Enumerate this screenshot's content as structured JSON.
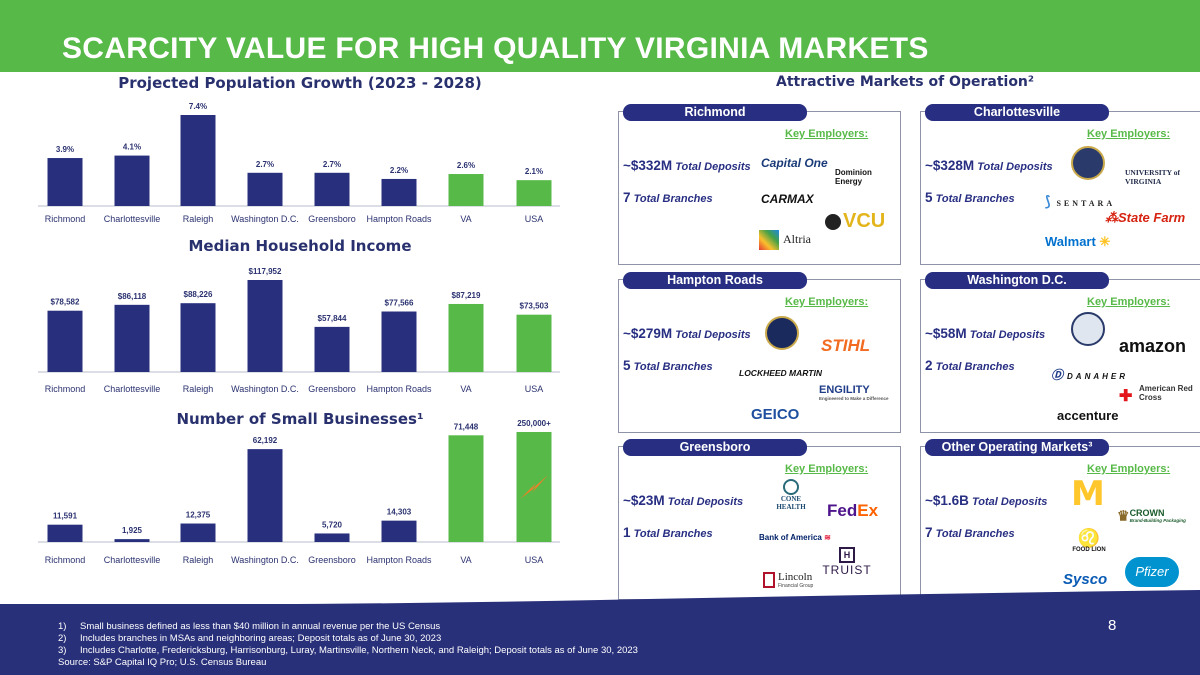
{
  "title": "SCARCITY VALUE FOR HIGH QUALITY VIRGINIA MARKETS",
  "chart_data": [
    {
      "type": "bar",
      "title": "Projected Population Growth (2023 - 2028)",
      "categories": [
        "Richmond",
        "Charlottesville",
        "Raleigh",
        "Washington D.C.",
        "Greensboro",
        "Hampton Roads",
        "VA",
        "USA"
      ],
      "values": [
        3.9,
        4.1,
        7.4,
        2.7,
        2.7,
        2.2,
        2.6,
        2.1
      ],
      "value_labels": [
        "3.9%",
        "4.1%",
        "7.4%",
        "2.7%",
        "2.7%",
        "2.2%",
        "2.6%",
        "2.1%"
      ],
      "bar_colors": [
        "#28307e",
        "#28307e",
        "#28307e",
        "#28307e",
        "#28307e",
        "#28307e",
        "#57b947",
        "#57b947"
      ],
      "ylim": [
        0,
        7.4
      ]
    },
    {
      "type": "bar",
      "title": "Median Household Income",
      "categories": [
        "Richmond",
        "Charlottesville",
        "Raleigh",
        "Washington D.C.",
        "Greensboro",
        "Hampton Roads",
        "VA",
        "USA"
      ],
      "values": [
        78582,
        86118,
        88226,
        117952,
        57844,
        77566,
        87219,
        73503
      ],
      "value_labels": [
        "$78,582",
        "$86,118",
        "$88,226",
        "$117,952",
        "$57,844",
        "$77,566",
        "$87,219",
        "$73,503"
      ],
      "bar_colors": [
        "#28307e",
        "#28307e",
        "#28307e",
        "#28307e",
        "#28307e",
        "#28307e",
        "#57b947",
        "#57b947"
      ],
      "ylim": [
        0,
        117952
      ]
    },
    {
      "type": "bar",
      "title": "Number of Small Businesses¹",
      "categories": [
        "Richmond",
        "Charlottesville",
        "Raleigh",
        "Washington D.C.",
        "Greensboro",
        "Hampton Roads",
        "VA",
        "USA"
      ],
      "values": [
        11591,
        1925,
        12375,
        62192,
        5720,
        14303,
        71448,
        250000
      ],
      "value_labels": [
        "11,591",
        "1,925",
        "12,375",
        "62,192",
        "5,720",
        "14,303",
        "71,448",
        "250,000+"
      ],
      "bar_colors": [
        "#28307e",
        "#28307e",
        "#28307e",
        "#28307e",
        "#28307e",
        "#28307e",
        "#57b947",
        "#57b947"
      ],
      "axis_break": "USA",
      "break_color": "#e8832a"
    }
  ],
  "markets_title": "Attractive Markets of Operation²",
  "key_label": "Key Employers:",
  "deposits_suffix": "Total Deposits",
  "branches_suffix": "Total Branches",
  "markets": [
    {
      "name": "Richmond",
      "deposits": "~$332M",
      "branches": "7",
      "employers": [
        "Capital One",
        "Dominion Energy",
        "CarMax",
        "VCU",
        "Altria"
      ]
    },
    {
      "name": "Charlottesville",
      "deposits": "~$328M",
      "branches": "5",
      "employers": [
        "University of Virginia",
        "Sentara",
        "State Farm",
        "Walmart"
      ]
    },
    {
      "name": "Hampton Roads",
      "deposits": "~$279M",
      "branches": "5",
      "employers": [
        "STIHL",
        "Lockheed Martin",
        "Engility",
        "GEICO"
      ]
    },
    {
      "name": "Washington D.C.",
      "deposits": "~$58M",
      "branches": "2",
      "employers": [
        "amazon",
        "Danaher",
        "American Red Cross",
        "accenture"
      ]
    },
    {
      "name": "Greensboro",
      "deposits": "~$23M",
      "branches": "1",
      "employers": [
        "Cone Health",
        "FedEx",
        "Bank of America",
        "Truist",
        "Lincoln Financial Group"
      ]
    },
    {
      "name": "Other Operating Markets³",
      "deposits": "~$1.6B",
      "branches": "7",
      "employers": [
        "McDonald's",
        "Crown",
        "Food Lion",
        "Sysco",
        "Pfizer"
      ]
    }
  ],
  "logos": {
    "capital_one": "Capital One",
    "dominion": "Dominion Energy",
    "carmax": "CARMAX",
    "vcu": "VCU",
    "altria": "Altria",
    "uva": "UNIVERSITY of VIRGINIA",
    "sentara": "SENTARA",
    "statefarm": "State Farm",
    "walmart": "Walmart",
    "stihl": "STIHL",
    "lockheed": "LOCKHEED MARTIN",
    "engility": "ENGILITY",
    "engility_tag": "Engineered to Make a Difference",
    "geico": "GEICO",
    "amazon": "amazon",
    "danaher": "DANAHER",
    "redcross": "American Red Cross",
    "accenture": "accenture",
    "cone": "CONE HEALTH",
    "fedex_fed": "Fed",
    "fedex_ex": "Ex",
    "bofa": "Bank of America",
    "truist": "TRUIST",
    "lincoln": "Lincoln",
    "lincoln_tag": "Financial Group",
    "crown": "CROWN",
    "crown_tag": "Brand-Building Packaging",
    "foodlion": "FOOD LION",
    "sysco": "Sysco",
    "pfizer": "Pfizer"
  },
  "colors": {
    "navy": "#28307e",
    "green": "#57b947",
    "orange": "#e8832a"
  },
  "footnotes": [
    {
      "num": "1)",
      "text": "Small business defined as less than $40 million in annual revenue per the US Census"
    },
    {
      "num": "2)",
      "text": "Includes branches in MSAs and neighboring areas; Deposit totals as of June 30, 2023"
    },
    {
      "num": "3)",
      "text": "Includes Charlotte, Fredericksburg, Harrisonburg, Luray, Martinsville, Northern Neck, and Raleigh; Deposit totals as of June 30, 2023"
    }
  ],
  "source": "Source: S&P Capital IQ Pro; U.S. Census Bureau",
  "page_number": "8"
}
